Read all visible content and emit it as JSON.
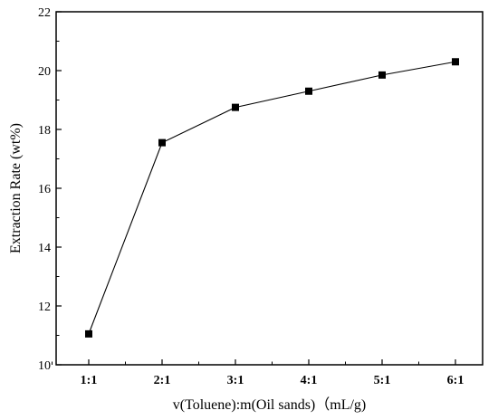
{
  "chart_data": {
    "type": "line",
    "categories": [
      "1:1",
      "2:1",
      "3:1",
      "4:1",
      "5:1",
      "6:1"
    ],
    "series": [
      {
        "values": [
          11.05,
          17.55,
          18.75,
          19.3,
          19.85,
          20.3
        ],
        "color": "#000000",
        "marker": "square"
      }
    ],
    "xlabel": "v(Toluene):m(Oil sands)（mL/g)",
    "ylabel": "Extraction Rate (wt%)",
    "ylim": [
      10,
      22
    ],
    "yticks": [
      10,
      12,
      14,
      16,
      18,
      20,
      22
    ],
    "grid": false
  }
}
